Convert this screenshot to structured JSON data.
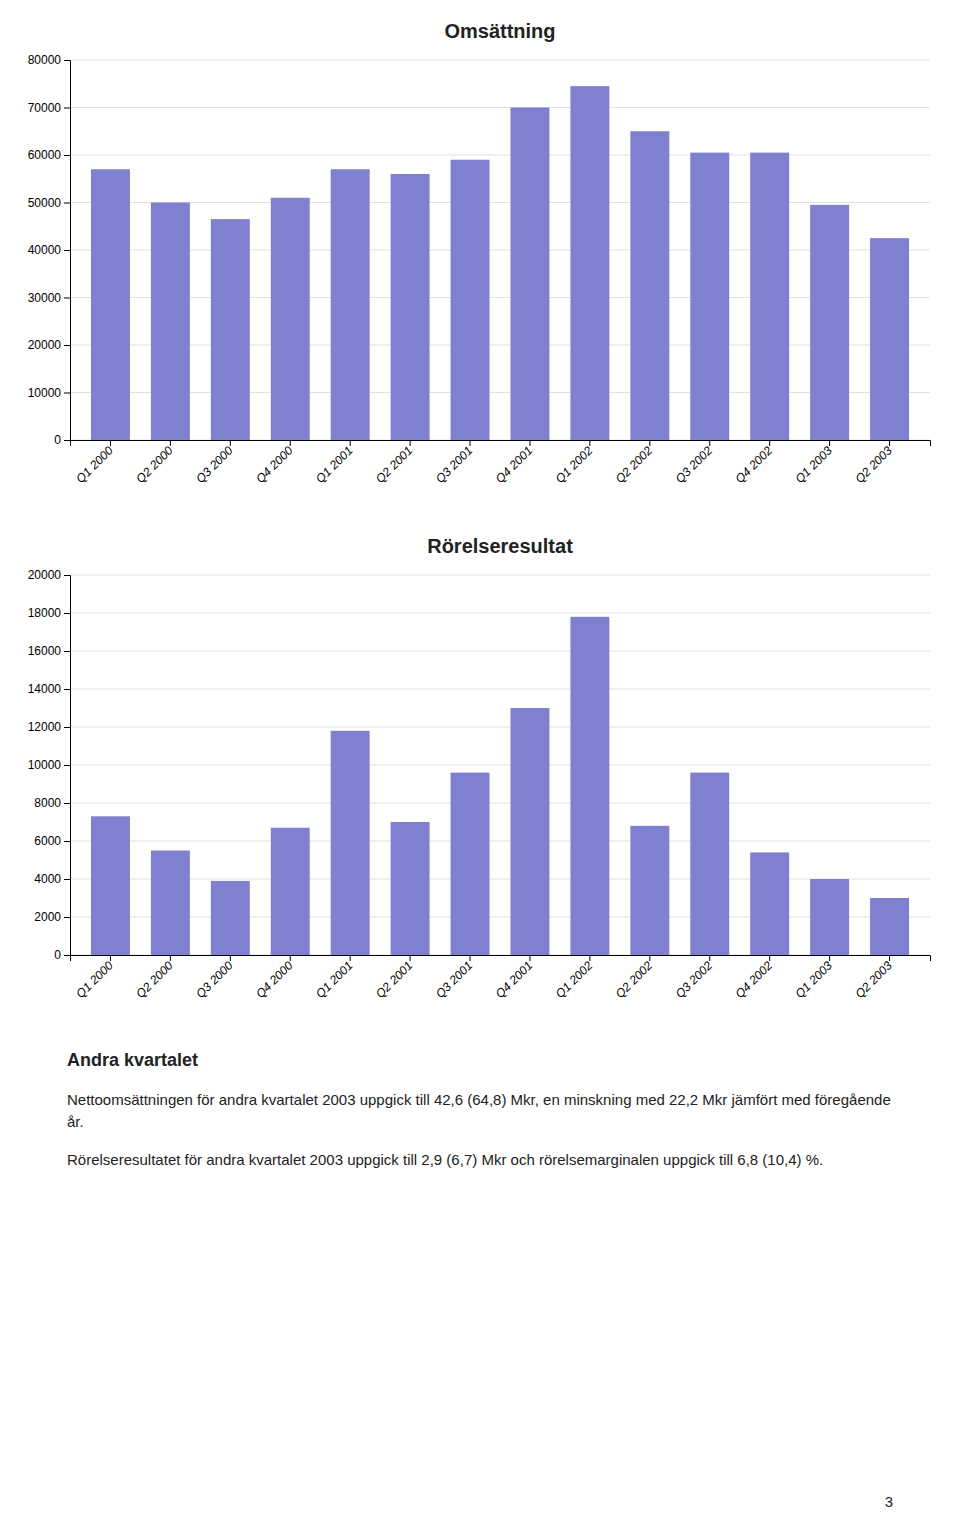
{
  "chart_data": [
    {
      "type": "bar",
      "title": "Omsättning",
      "categories": [
        "Q1 2000",
        "Q2 2000",
        "Q3 2000",
        "Q4 2000",
        "Q1 2001",
        "Q2 2001",
        "Q3 2001",
        "Q4 2001",
        "Q1 2002",
        "Q2 2002",
        "Q3 2002",
        "Q4 2002",
        "Q1 2003",
        "Q2 2003"
      ],
      "values": [
        57000,
        50000,
        46500,
        51000,
        57000,
        56000,
        59000,
        70000,
        74500,
        65000,
        60500,
        60500,
        49500,
        42500
      ],
      "color": "#8080d0",
      "ylim": [
        0,
        80000
      ],
      "yticks": [
        0,
        10000,
        20000,
        30000,
        40000,
        50000,
        60000,
        70000,
        80000
      ],
      "grid": true
    },
    {
      "type": "bar",
      "title": "Rörelseresultat",
      "categories": [
        "Q1 2000",
        "Q2 2000",
        "Q3 2000",
        "Q4 2000",
        "Q1 2001",
        "Q2 2001",
        "Q3 2001",
        "Q4 2001",
        "Q1 2002",
        "Q2 2002",
        "Q3 2002",
        "Q4 2002",
        "Q1 2003",
        "Q2 2003"
      ],
      "values": [
        7300,
        5500,
        3900,
        6700,
        11800,
        7000,
        9600,
        13000,
        17800,
        6800,
        9600,
        5400,
        4000,
        3000
      ],
      "color": "#8080d0",
      "ylim": [
        0,
        20000
      ],
      "yticks": [
        0,
        2000,
        4000,
        6000,
        8000,
        10000,
        12000,
        14000,
        16000,
        18000,
        20000
      ],
      "grid": true
    }
  ],
  "page_title": "Andra kvartalet",
  "paragraphs": [
    "Nettoomsättningen för andra kvartalet 2003 uppgick till 42,6 (64,8) Mkr, en minskning med 22,2 Mkr jämfört med föregående år.",
    "Rörelseresultatet för andra kvartalet 2003 uppgick till 2,9 (6,7) Mkr och rörelsemarginalen uppgick till 6,8 (10,4) %."
  ],
  "page_number": "3"
}
